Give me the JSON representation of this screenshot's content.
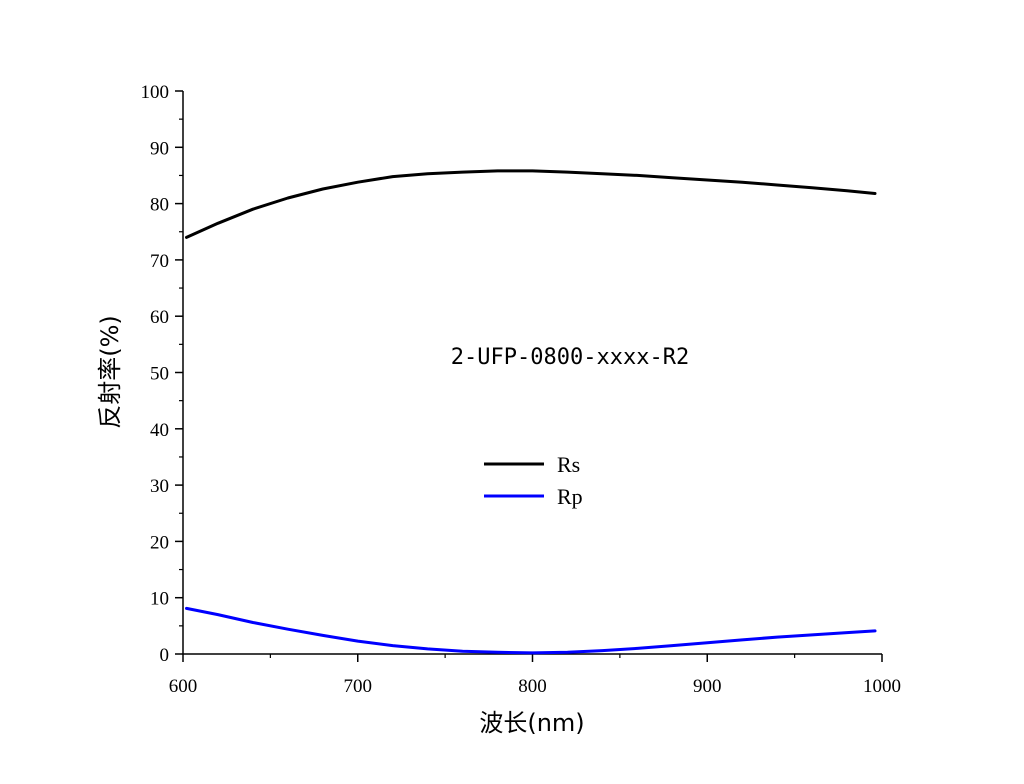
{
  "chart_data": {
    "type": "line",
    "xlabel": "波长(nm)",
    "ylabel": "反射率(%)",
    "xlim": [
      600,
      1000
    ],
    "ylim": [
      0,
      100
    ],
    "x_ticks": [
      "600",
      "700",
      "800",
      "900",
      "1000"
    ],
    "y_ticks": [
      "0",
      "10",
      "20",
      "30",
      "40",
      "50",
      "60",
      "70",
      "80",
      "90",
      "100"
    ],
    "annotation": "2-UFP-0800-xxxx-R2",
    "legend_position": "center",
    "grid": false,
    "x": [
      602,
      620,
      640,
      660,
      680,
      700,
      720,
      740,
      760,
      780,
      800,
      820,
      840,
      860,
      880,
      900,
      920,
      940,
      960,
      980,
      996
    ],
    "series": [
      {
        "name": "Rs",
        "color": "#000000",
        "values": [
          74.0,
          76.5,
          79.0,
          81.0,
          82.6,
          83.8,
          84.8,
          85.3,
          85.6,
          85.8,
          85.8,
          85.6,
          85.3,
          85.0,
          84.6,
          84.2,
          83.8,
          83.3,
          82.8,
          82.3,
          81.8
        ]
      },
      {
        "name": "Rp",
        "color": "#0000ff",
        "values": [
          8.1,
          7.0,
          5.6,
          4.4,
          3.3,
          2.3,
          1.5,
          0.9,
          0.5,
          0.3,
          0.2,
          0.3,
          0.6,
          1.0,
          1.5,
          2.0,
          2.5,
          3.0,
          3.4,
          3.8,
          4.1
        ]
      }
    ]
  }
}
